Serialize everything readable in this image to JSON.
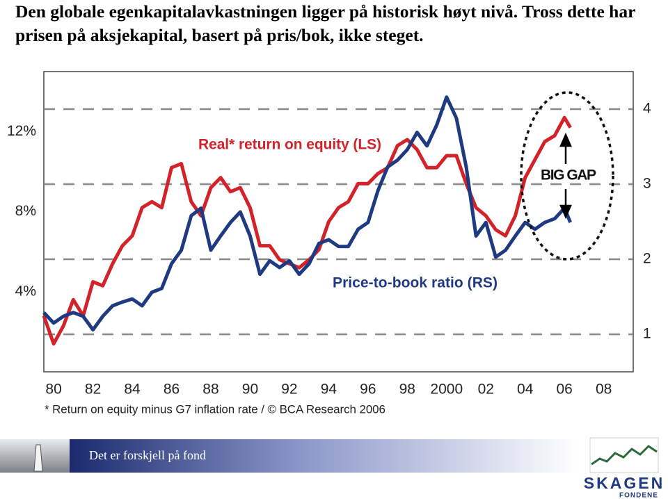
{
  "heading": "Den globale egenkapitalavkastningen ligger på historisk høyt nivå. Tross dette har prisen på aksjekapital, basert på pris/bok, ikke steget.",
  "chart_data": {
    "type": "line",
    "x": [
      1979.5,
      1980,
      1980.5,
      1981,
      1981.5,
      1982,
      1982.5,
      1983,
      1983.5,
      1984,
      1984.5,
      1985,
      1985.5,
      1986,
      1986.5,
      1987,
      1987.5,
      1988,
      1988.5,
      1989,
      1989.5,
      1990,
      1990.5,
      1991,
      1991.5,
      1992,
      1992.5,
      1993,
      1993.5,
      1994,
      1994.5,
      1995,
      1995.5,
      1996,
      1996.5,
      1997,
      1997.5,
      1998,
      1998.5,
      1999,
      1999.5,
      2000,
      2000.5,
      2001,
      2001.5,
      2002,
      2002.5,
      2003,
      2003.5,
      2004,
      2004.5,
      2005,
      2005.5,
      2006,
      2006.3
    ],
    "series": [
      {
        "name": "Real* return on equity (LS)",
        "color": "#d2232a",
        "values": [
          2.8,
          1.4,
          2.3,
          3.6,
          2.8,
          4.5,
          4.3,
          5.4,
          6.3,
          6.8,
          8.2,
          8.5,
          8.2,
          10.2,
          10.4,
          8.5,
          7.8,
          9.2,
          9.7,
          9.0,
          9.2,
          8.2,
          6.3,
          6.3,
          5.6,
          5.4,
          5.2,
          5.6,
          6.1,
          7.5,
          8.2,
          8.5,
          9.4,
          9.4,
          9.9,
          10.2,
          11.3,
          11.6,
          11.1,
          10.2,
          10.2,
          10.8,
          10.8,
          9.4,
          8.2,
          7.8,
          7.1,
          6.8,
          7.8,
          9.7,
          10.6,
          11.5,
          11.8,
          12.7,
          12.2
        ]
      },
      {
        "name": "Price-to-book ratio (RS)",
        "color": "#1f3a80",
        "axis": "y2",
        "values": [
          1.29,
          1.15,
          1.24,
          1.29,
          1.24,
          1.06,
          1.24,
          1.38,
          1.43,
          1.47,
          1.38,
          1.56,
          1.61,
          1.94,
          2.12,
          2.58,
          2.68,
          2.12,
          2.31,
          2.49,
          2.63,
          2.31,
          1.8,
          1.98,
          1.89,
          1.98,
          1.8,
          1.94,
          2.21,
          2.26,
          2.17,
          2.17,
          2.4,
          2.49,
          2.91,
          3.23,
          3.32,
          3.46,
          3.69,
          3.51,
          3.79,
          4.16,
          3.88,
          3.23,
          2.31,
          2.49,
          2.03,
          2.12,
          2.31,
          2.49,
          2.4,
          2.49,
          2.54,
          2.68,
          2.49
        ]
      }
    ],
    "xlim": [
      1979.5,
      2009.5
    ],
    "xticks": [
      {
        "value": 1980,
        "label": "80"
      },
      {
        "value": 1982,
        "label": "82"
      },
      {
        "value": 1984,
        "label": "84"
      },
      {
        "value": 1986,
        "label": "86"
      },
      {
        "value": 1988,
        "label": "88"
      },
      {
        "value": 1990,
        "label": "90"
      },
      {
        "value": 1992,
        "label": "92"
      },
      {
        "value": 1994,
        "label": "94"
      },
      {
        "value": 1996,
        "label": "96"
      },
      {
        "value": 1998,
        "label": "98"
      },
      2000,
      {
        "value": 2002,
        "label": "02"
      },
      {
        "value": 2004,
        "label": "04"
      },
      {
        "value": 2006,
        "label": "06"
      },
      {
        "value": 2008,
        "label": "08"
      }
    ],
    "ylim": [
      0,
      15
    ],
    "yticks": [
      {
        "value": 4,
        "label": "4%"
      },
      {
        "value": 8,
        "label": "8%"
      },
      {
        "value": 12,
        "label": "12%"
      }
    ],
    "y2lim": [
      0.5,
      4.5
    ],
    "y2ticks": [
      1,
      2,
      3,
      4
    ],
    "grid": "y2",
    "annotations": [
      "BIG GAP"
    ],
    "footnote": "* Return on equity minus G7 inflation rate / © BCA Research 2006"
  },
  "footer": {
    "slogan": "Det er forskjell på fond",
    "logo": "SKAGEN",
    "logo_sub": "FONDENE"
  }
}
